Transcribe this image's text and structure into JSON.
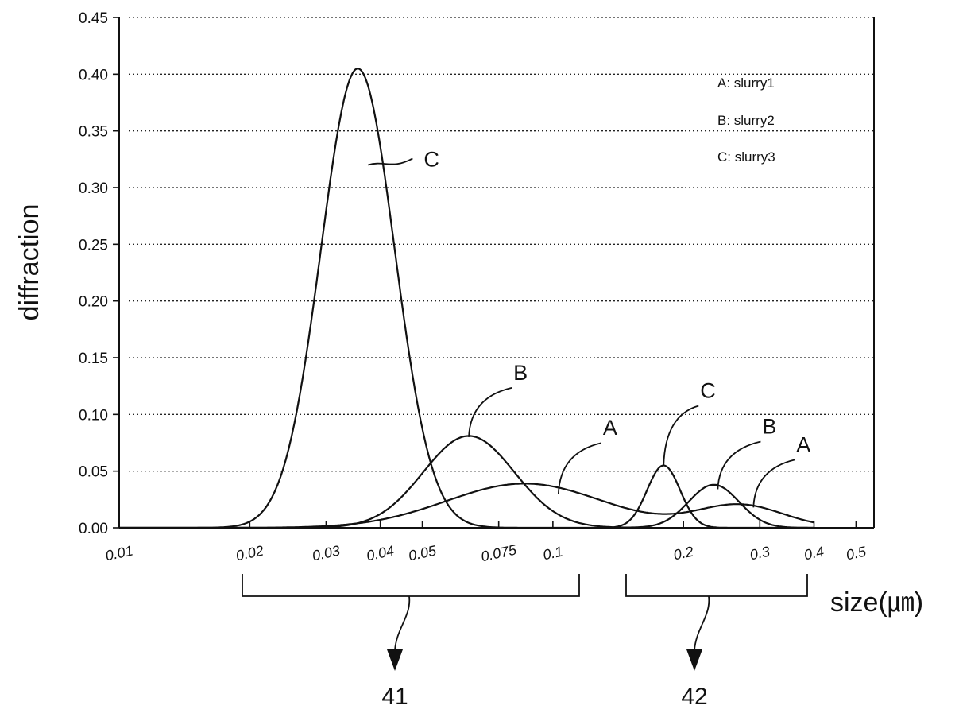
{
  "chart_data": {
    "type": "line",
    "xlabel": "size(㎛)",
    "ylabel": "diffraction",
    "x_scale": "log",
    "xlim": [
      0.01,
      0.55
    ],
    "ylim": [
      0,
      0.45
    ],
    "grid": "horizontal dotted",
    "legend_position": "top-right",
    "legend": [
      "A: slurry1",
      "B: slurry2",
      "C: slurry3"
    ],
    "y_ticks": [
      "0.00",
      "0.05",
      "0.10",
      "0.15",
      "0.20",
      "0.25",
      "0.30",
      "0.35",
      "0.40",
      "0.45"
    ],
    "x_ticks": [
      {
        "value": 0.01,
        "label": "0.01"
      },
      {
        "value": 0.02,
        "label": "0.02"
      },
      {
        "value": 0.03,
        "label": "0.03"
      },
      {
        "value": 0.04,
        "label": "0.04"
      },
      {
        "value": 0.05,
        "label": "0.05"
      },
      {
        "value": 0.075,
        "label": "0.075"
      },
      {
        "value": 0.1,
        "label": "0.1"
      },
      {
        "value": 0.2,
        "label": "0.2"
      },
      {
        "value": 0.3,
        "label": "0.3"
      },
      {
        "value": 0.4,
        "label": "0.4"
      },
      {
        "value": 0.5,
        "label": "0.5"
      }
    ],
    "series": [
      {
        "name": "A",
        "peaks": [
          {
            "x": 0.086,
            "y": 0.039,
            "sigma": 0.18
          },
          {
            "x": 0.27,
            "y": 0.02,
            "sigma": 0.1
          }
        ]
      },
      {
        "name": "B",
        "peaks": [
          {
            "x": 0.064,
            "y": 0.081,
            "sigma": 0.105
          },
          {
            "x": 0.235,
            "y": 0.038,
            "sigma": 0.058
          }
        ]
      },
      {
        "name": "C",
        "peaks": [
          {
            "x": 0.0355,
            "y": 0.405,
            "sigma": 0.085
          },
          {
            "x": 0.18,
            "y": 0.055,
            "sigma": 0.038
          }
        ]
      }
    ],
    "annotations": [
      {
        "label": "C",
        "series": "C",
        "x": 0.0375,
        "y": 0.32
      },
      {
        "label": "B",
        "series": "B",
        "x": 0.064,
        "y": 0.08
      },
      {
        "label": "A",
        "series": "A",
        "x": 0.103,
        "y": 0.03
      },
      {
        "label": "C",
        "series": "C",
        "x": 0.18,
        "y": 0.055
      },
      {
        "label": "B",
        "series": "B",
        "x": 0.24,
        "y": 0.034
      },
      {
        "label": "A",
        "series": "A",
        "x": 0.29,
        "y": 0.018
      }
    ],
    "groups": [
      {
        "label": "41",
        "range": [
          0.02,
          0.11
        ]
      },
      {
        "label": "42",
        "range": [
          0.16,
          0.35
        ]
      }
    ]
  }
}
